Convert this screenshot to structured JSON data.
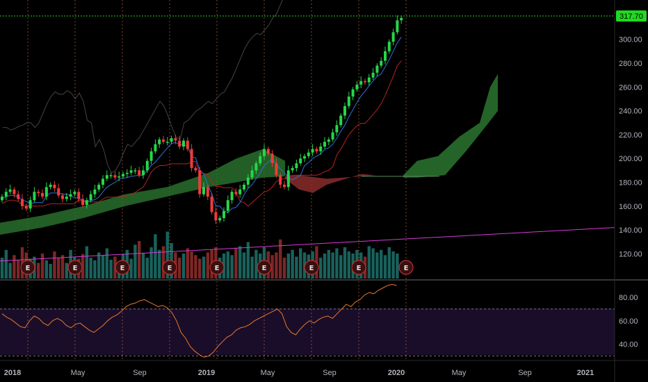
{
  "chart_data": {
    "type": "candlestick",
    "title": "",
    "last_price": "317.70",
    "colors": {
      "up": "#26d64a",
      "down": "#ef3b3b",
      "vol_up": "#1c6b66",
      "vol_down": "#8c2a2a",
      "last_line": "#21d821",
      "trendline": "#d63bd6",
      "rsi_line": "#e8792a",
      "cloud_bull": "#2e7d32",
      "cloud_bear": "#8b2b2b",
      "grid": "#a15a3a",
      "separator": "#6b6b6b"
    },
    "price_axis": {
      "ticks": [
        "300.00",
        "280.00",
        "260.00",
        "240.00",
        "220.00",
        "200.00",
        "180.00",
        "160.00",
        "140.00",
        "120.00"
      ],
      "values": [
        300,
        280,
        260,
        240,
        220,
        200,
        180,
        160,
        140,
        120
      ]
    },
    "rsi_axis": {
      "ticks": [
        "80.00",
        "60.00",
        "40.00"
      ],
      "values": [
        80,
        60,
        40
      ],
      "overbought": 70,
      "oversold": 30
    },
    "time_axis": {
      "labels": [
        "2018",
        "May",
        "Sep",
        "2019",
        "May",
        "Sep",
        "2020",
        "May",
        "Sep",
        "2021"
      ],
      "bold": [
        "2018",
        "2019",
        "2020",
        "2021"
      ]
    },
    "earnings_marker": "E",
    "earnings_count": 9,
    "candles_close": [
      168,
      172,
      174,
      170,
      166,
      160,
      158,
      165,
      172,
      171,
      168,
      176,
      178,
      175,
      169,
      166,
      168,
      170,
      172,
      166,
      161,
      165,
      170,
      174,
      178,
      183,
      186,
      186,
      184,
      185,
      187,
      188,
      190,
      190,
      186,
      190,
      198,
      206,
      212,
      216,
      214,
      214,
      217,
      215,
      210,
      215,
      208,
      192,
      190,
      170,
      176,
      168,
      155,
      148,
      150,
      156,
      165,
      172,
      170,
      174,
      178,
      184,
      190,
      196,
      202,
      208,
      204,
      196,
      186,
      178,
      176,
      190,
      192,
      196,
      200,
      202,
      205,
      208,
      206,
      210,
      214,
      216,
      222,
      228,
      236,
      244,
      252,
      258,
      262,
      265,
      264,
      268,
      272,
      278,
      282,
      290,
      298,
      306,
      316,
      318
    ],
    "rsi": [
      66,
      63,
      61,
      58,
      55,
      54,
      60,
      64,
      62,
      58,
      56,
      60,
      62,
      60,
      56,
      54,
      57,
      58,
      55,
      52,
      50,
      53,
      56,
      60,
      63,
      65,
      68,
      72,
      74,
      75,
      77,
      78,
      76,
      74,
      72,
      73,
      71,
      67,
      60,
      50,
      45,
      38,
      34,
      31,
      29,
      30,
      33,
      38,
      42,
      46,
      48,
      52,
      54,
      55,
      57,
      60,
      62,
      64,
      66,
      68,
      70,
      66,
      55,
      50,
      48,
      53,
      57,
      60,
      58,
      61,
      63,
      64,
      62,
      66,
      70,
      74,
      72,
      76,
      78,
      82,
      84,
      83,
      86,
      88,
      90,
      91,
      90
    ],
    "volume": [
      0.4,
      0.55,
      0.3,
      0.45,
      0.35,
      0.6,
      0.5,
      0.38,
      0.42,
      0.3,
      0.48,
      0.35,
      0.28,
      0.52,
      0.4,
      0.45,
      0.3,
      0.55,
      0.42,
      0.38,
      0.47,
      0.62,
      0.4,
      0.35,
      0.5,
      0.44,
      0.58,
      0.36,
      0.42,
      0.3,
      0.46,
      0.55,
      0.38,
      0.65,
      0.72,
      0.48,
      0.4,
      0.6,
      0.85,
      0.55,
      0.62,
      0.9,
      0.68,
      0.5,
      0.4,
      0.48,
      0.58,
      0.52,
      0.45,
      0.38,
      0.42,
      0.5,
      0.55,
      0.6,
      0.4,
      0.48,
      0.52,
      0.45,
      0.58,
      0.62,
      0.5,
      0.7,
      0.42,
      0.55,
      0.48,
      0.6,
      0.52,
      0.45,
      0.5,
      0.75,
      0.4,
      0.48,
      0.55,
      0.42,
      0.58,
      0.5,
      0.46,
      0.52,
      0.62,
      0.4,
      0.48,
      0.55,
      0.5,
      0.58,
      0.45,
      0.6,
      0.52,
      0.48,
      0.55,
      0.5,
      0.42,
      0.62,
      0.58,
      0.5,
      0.55,
      0.45,
      0.6,
      0.52,
      0.48
    ]
  }
}
